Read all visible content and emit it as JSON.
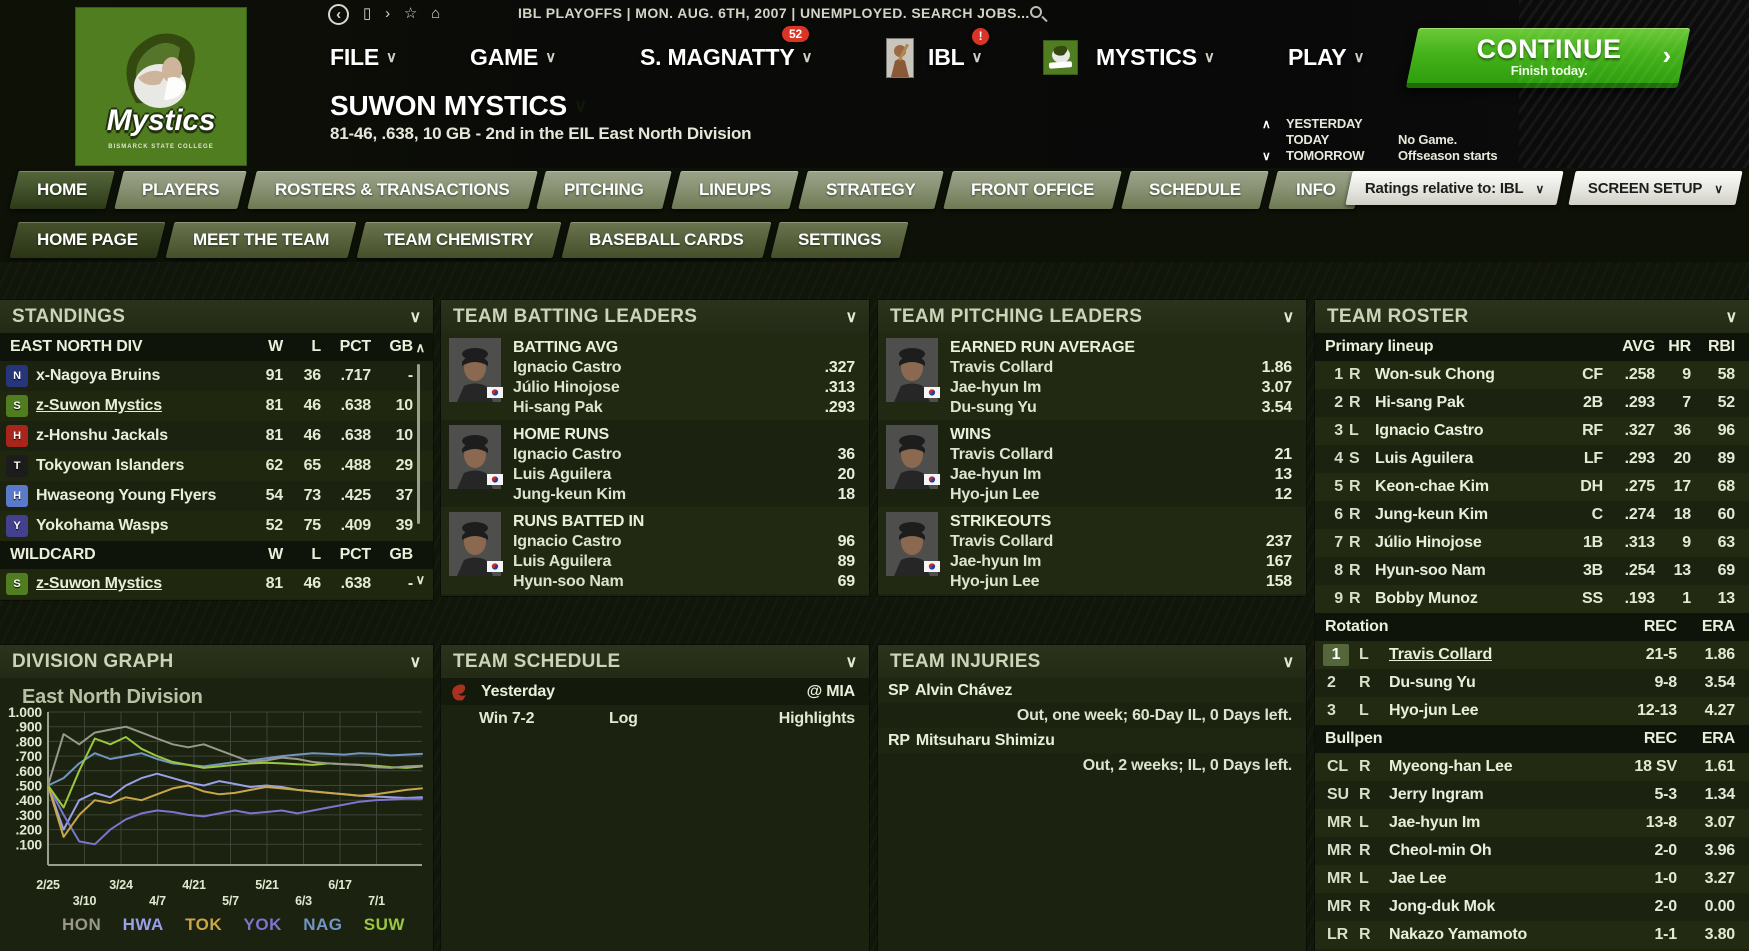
{
  "top_bar": {
    "status_text": "IBL PLAYOFFS  |  MON. AUG. 6TH, 2007  |  UNEMPLOYED. SEARCH JOBS...",
    "icons": [
      {
        "name": "back-icon",
        "glyph": "‹",
        "circled": true
      },
      {
        "name": "page-icon",
        "glyph": "▯",
        "circled": false
      },
      {
        "name": "forward-icon",
        "glyph": "›",
        "circled": false
      },
      {
        "name": "star-icon",
        "glyph": "☆",
        "circled": false
      },
      {
        "name": "home-icon",
        "glyph": "⌂",
        "circled": false
      }
    ]
  },
  "logo": {
    "word": "Mystics",
    "subtext": "BISMARCK STATE COLLEGE"
  },
  "menu": {
    "file": "FILE",
    "game": "GAME",
    "manager": "S. MAGNATTY",
    "manager_badge": "52",
    "league": "IBL",
    "league_badge": "!",
    "team": "MYSTICS",
    "play": "PLAY",
    "continue_label": "CONTINUE",
    "continue_sub": "Finish today.",
    "continue_chevron": "›",
    "caret": "∨"
  },
  "team_header": {
    "name": "SUWON MYSTICS",
    "record_line": "81-46, .638, 10 GB - 2nd in the EIL East North Division",
    "rows": [
      {
        "arrow": "∧",
        "label": "YESTERDAY",
        "value": ""
      },
      {
        "arrow": "",
        "label": "TODAY",
        "value": "No Game."
      },
      {
        "arrow": "∨",
        "label": "TOMORROW",
        "value": "Offseason starts"
      }
    ]
  },
  "nav": {
    "tabs": [
      {
        "label": "HOME",
        "active": true
      },
      {
        "label": "PLAYERS",
        "active": false
      },
      {
        "label": "ROSTERS & TRANSACTIONS",
        "active": false
      },
      {
        "label": "PITCHING",
        "active": false
      },
      {
        "label": "LINEUPS",
        "active": false
      },
      {
        "label": "STRATEGY",
        "active": false
      },
      {
        "label": "FRONT OFFICE",
        "active": false
      },
      {
        "label": "SCHEDULE",
        "active": false
      },
      {
        "label": "INFO",
        "active": false
      }
    ],
    "ratings_button": "Ratings relative to: IBL",
    "screen_setup_button": "SCREEN SETUP",
    "caret": "∨"
  },
  "subnav": {
    "tabs": [
      {
        "label": "HOME PAGE",
        "active": true
      },
      {
        "label": "MEET THE TEAM",
        "active": false
      },
      {
        "label": "TEAM CHEMISTRY",
        "active": false
      },
      {
        "label": "BASEBALL CARDS",
        "active": false
      },
      {
        "label": "SETTINGS",
        "active": false
      }
    ]
  },
  "standings": {
    "title": "STANDINGS",
    "cols": [
      "W",
      "L",
      "PCT",
      "GB"
    ],
    "sections": [
      {
        "header": "EAST NORTH DIV",
        "rows": [
          {
            "team": "x-Nagoya  Bruins",
            "w": "91",
            "l": "36",
            "pct": ".717",
            "gb": "-",
            "logo": "bruins",
            "underline": false
          },
          {
            "team": "z-Suwon Mystics",
            "w": "81",
            "l": "46",
            "pct": ".638",
            "gb": "10",
            "logo": "mystics",
            "underline": true
          },
          {
            "team": "z-Honshu Jackals",
            "w": "81",
            "l": "46",
            "pct": ".638",
            "gb": "10",
            "logo": "jackals",
            "underline": false
          },
          {
            "team": "Tokyowan Islanders",
            "w": "62",
            "l": "65",
            "pct": ".488",
            "gb": "29",
            "logo": "islanders",
            "underline": false
          },
          {
            "team": "Hwaseong Young Flyers",
            "w": "54",
            "l": "73",
            "pct": ".425",
            "gb": "37",
            "logo": "flyers",
            "underline": false
          },
          {
            "team": "Yokohama Wasps",
            "w": "52",
            "l": "75",
            "pct": ".409",
            "gb": "39",
            "logo": "wasps",
            "underline": false
          }
        ]
      },
      {
        "header": "WILDCARD",
        "rows": [
          {
            "team": "z-Suwon Mystics",
            "w": "81",
            "l": "46",
            "pct": ".638",
            "gb": "-",
            "logo": "mystics",
            "underline": true
          }
        ]
      }
    ]
  },
  "batting_leaders": {
    "title": "TEAM BATTING LEADERS",
    "groups": [
      {
        "category": "BATTING AVG",
        "players": [
          {
            "name": "Ignacio Castro",
            "value": ".327"
          },
          {
            "name": "Júlio Hinojose",
            "value": ".313"
          },
          {
            "name": "Hi-sang Pak",
            "value": ".293"
          }
        ]
      },
      {
        "category": "HOME RUNS",
        "players": [
          {
            "name": "Ignacio Castro",
            "value": "36"
          },
          {
            "name": "Luis Aguilera",
            "value": "20"
          },
          {
            "name": "Jung-keun Kim",
            "value": "18"
          }
        ]
      },
      {
        "category": "RUNS BATTED IN",
        "players": [
          {
            "name": "Ignacio Castro",
            "value": "96"
          },
          {
            "name": "Luis Aguilera",
            "value": "89"
          },
          {
            "name": "Hyun-soo Nam",
            "value": "69"
          }
        ]
      }
    ]
  },
  "pitching_leaders": {
    "title": "TEAM PITCHING LEADERS",
    "groups": [
      {
        "category": "EARNED RUN AVERAGE",
        "players": [
          {
            "name": "Travis Collard",
            "value": "1.86"
          },
          {
            "name": "Jae-hyun Im",
            "value": "3.07"
          },
          {
            "name": "Du-sung Yu",
            "value": "3.54"
          }
        ]
      },
      {
        "category": "WINS",
        "players": [
          {
            "name": "Travis Collard",
            "value": "21"
          },
          {
            "name": "Jae-hyun Im",
            "value": "13"
          },
          {
            "name": "Hyo-jun Lee",
            "value": "12"
          }
        ]
      },
      {
        "category": "STRIKEOUTS",
        "players": [
          {
            "name": "Travis Collard",
            "value": "237"
          },
          {
            "name": "Jae-hyun Im",
            "value": "167"
          },
          {
            "name": "Hyo-jun Lee",
            "value": "158"
          }
        ]
      }
    ]
  },
  "schedule": {
    "title": "TEAM SCHEDULE",
    "day": "Yesterday",
    "opponent": "@ MIA",
    "result": "Win 7-2",
    "log_label": "Log",
    "highlights_label": "Highlights"
  },
  "injuries": {
    "title": "TEAM INJURIES",
    "items": [
      {
        "pos": "SP",
        "name": "Alvin Chávez",
        "detail": "Out, one week; 60-Day IL, 0 Days left."
      },
      {
        "pos": "RP",
        "name": "Mitsuharu Shimizu",
        "detail": "Out, 2 weeks; IL, 0 Days left."
      }
    ]
  },
  "graph_panel": {
    "title": "DIVISION GRAPH"
  },
  "roster": {
    "title": "TEAM ROSTER",
    "sections": [
      {
        "label": "Primary lineup",
        "cols": [
          "AVG",
          "HR",
          "RBI"
        ],
        "type": "bat",
        "rows": [
          {
            "num": "1",
            "hand": "R",
            "name": "Won-suk Chong",
            "pos": "CF",
            "avg": ".258",
            "hr": "9",
            "rbi": "58"
          },
          {
            "num": "2",
            "hand": "R",
            "name": "Hi-sang Pak",
            "pos": "2B",
            "avg": ".293",
            "hr": "7",
            "rbi": "52"
          },
          {
            "num": "3",
            "hand": "L",
            "name": "Ignacio Castro",
            "pos": "RF",
            "avg": ".327",
            "hr": "36",
            "rbi": "96"
          },
          {
            "num": "4",
            "hand": "S",
            "name": "Luis Aguilera",
            "pos": "LF",
            "avg": ".293",
            "hr": "20",
            "rbi": "89"
          },
          {
            "num": "5",
            "hand": "R",
            "name": "Keon-chae Kim",
            "pos": "DH",
            "avg": ".275",
            "hr": "17",
            "rbi": "68"
          },
          {
            "num": "6",
            "hand": "R",
            "name": "Jung-keun Kim",
            "pos": "C",
            "avg": ".274",
            "hr": "18",
            "rbi": "60"
          },
          {
            "num": "7",
            "hand": "R",
            "name": "Júlio Hinojose",
            "pos": "1B",
            "avg": ".313",
            "hr": "9",
            "rbi": "63"
          },
          {
            "num": "8",
            "hand": "R",
            "name": "Hyun-soo Nam",
            "pos": "3B",
            "avg": ".254",
            "hr": "13",
            "rbi": "69"
          },
          {
            "num": "9",
            "hand": "R",
            "name": "Bobby Munoz",
            "pos": "SS",
            "avg": ".193",
            "hr": "1",
            "rbi": "13"
          }
        ]
      },
      {
        "label": "Rotation",
        "cols": [
          "REC",
          "ERA"
        ],
        "type": "pit",
        "rows": [
          {
            "num": "1",
            "hand": "L",
            "name": "Travis Collard",
            "rec": "21-5",
            "era": "1.86",
            "highlight": true,
            "underline": true
          },
          {
            "num": "2",
            "hand": "R",
            "name": "Du-sung Yu",
            "rec": "9-8",
            "era": "3.54"
          },
          {
            "num": "3",
            "hand": "L",
            "name": "Hyo-jun Lee",
            "rec": "12-13",
            "era": "4.27"
          }
        ]
      },
      {
        "label": "Bullpen",
        "cols": [
          "REC",
          "ERA"
        ],
        "type": "pit",
        "rows": [
          {
            "num": "CL",
            "hand": "R",
            "name": "Myeong-han Lee",
            "rec": "18 SV",
            "era": "1.61"
          },
          {
            "num": "SU",
            "hand": "R",
            "name": "Jerry Ingram",
            "rec": "5-3",
            "era": "1.34"
          },
          {
            "num": "MR",
            "hand": "L",
            "name": "Jae-hyun Im",
            "rec": "13-8",
            "era": "3.07"
          },
          {
            "num": "MR",
            "hand": "R",
            "name": "Cheol-min Oh",
            "rec": "2-0",
            "era": "3.96"
          },
          {
            "num": "MR",
            "hand": "L",
            "name": "Jae Lee",
            "rec": "1-0",
            "era": "3.27"
          },
          {
            "num": "MR",
            "hand": "R",
            "name": "Jong-duk Mok",
            "rec": "2-0",
            "era": "0.00"
          },
          {
            "num": "LR",
            "hand": "R",
            "name": "Nakazo Yamamoto",
            "rec": "1-1",
            "era": "3.80"
          }
        ]
      }
    ]
  },
  "chart_data": {
    "type": "line",
    "title": "East North Division",
    "xlabel": "",
    "ylabel": "",
    "ylim": [
      0,
      1
    ],
    "grid": true,
    "legend_position": "bottom",
    "yticks": [
      "1.000",
      ".900",
      ".800",
      ".700",
      ".600",
      ".500",
      ".400",
      ".300",
      ".200",
      ".100"
    ],
    "xticks": [
      "2/25",
      "3/10",
      "3/24",
      "4/7",
      "4/21",
      "5/7",
      "5/21",
      "6/3",
      "6/17",
      "7/1"
    ],
    "series": [
      {
        "name": "HON",
        "color": "#98998b",
        "values": [
          0.5,
          0.85,
          0.78,
          0.86,
          0.88,
          0.9,
          0.86,
          0.82,
          0.78,
          0.76,
          0.78,
          0.74,
          0.7,
          0.66,
          0.67,
          0.69,
          0.68,
          0.66,
          0.65,
          0.645,
          0.64,
          0.625,
          0.62,
          0.63,
          0.635
        ]
      },
      {
        "name": "HWA",
        "color": "#9aa0e8",
        "values": [
          0.5,
          0.2,
          0.4,
          0.45,
          0.42,
          0.5,
          0.55,
          0.58,
          0.55,
          0.52,
          0.5,
          0.53,
          0.51,
          0.49,
          0.5,
          0.49,
          0.47,
          0.46,
          0.45,
          0.44,
          0.43,
          0.425,
          0.42,
          0.415,
          0.42
        ]
      },
      {
        "name": "TOK",
        "color": "#c9a648",
        "values": [
          0.5,
          0.15,
          0.3,
          0.4,
          0.38,
          0.42,
          0.4,
          0.44,
          0.48,
          0.5,
          0.46,
          0.44,
          0.45,
          0.47,
          0.49,
          0.48,
          0.47,
          0.46,
          0.45,
          0.44,
          0.43,
          0.44,
          0.455,
          0.47,
          0.48
        ]
      },
      {
        "name": "YOK",
        "color": "#7d74cc",
        "values": [
          0.5,
          0.3,
          0.12,
          0.1,
          0.2,
          0.27,
          0.31,
          0.33,
          0.32,
          0.3,
          0.29,
          0.31,
          0.33,
          0.31,
          0.32,
          0.33,
          0.31,
          0.33,
          0.35,
          0.37,
          0.39,
          0.4,
          0.405,
          0.41,
          0.41
        ]
      },
      {
        "name": "NAG",
        "color": "#7395c2",
        "values": [
          0.5,
          0.55,
          0.65,
          0.72,
          0.68,
          0.7,
          0.72,
          0.68,
          0.65,
          0.64,
          0.63,
          0.645,
          0.66,
          0.67,
          0.685,
          0.7,
          0.71,
          0.72,
          0.715,
          0.71,
          0.72,
          0.715,
          0.705,
          0.71,
          0.715
        ]
      },
      {
        "name": "SUW",
        "color": "#9ac83e",
        "values": [
          0.5,
          0.35,
          0.6,
          0.82,
          0.78,
          0.83,
          0.75,
          0.7,
          0.66,
          0.64,
          0.62,
          0.63,
          0.64,
          0.65,
          0.655,
          0.65,
          0.645,
          0.64,
          0.65,
          0.645,
          0.64,
          0.635,
          0.625,
          0.62,
          0.63
        ]
      }
    ]
  },
  "colors": {
    "accent_green": "#4f7d1f",
    "continue_green": "#46b31c",
    "badge_red": "#d93425",
    "panel_bg": "#1b2210",
    "strip_bg": "#0f140a"
  }
}
